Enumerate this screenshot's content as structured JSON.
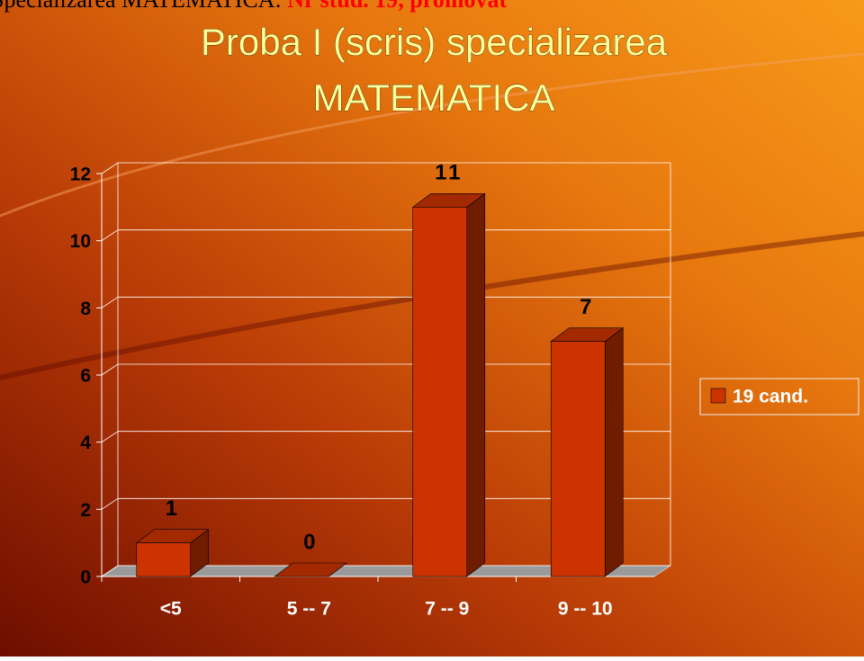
{
  "header": {
    "label": "Specializarea MATEMATICA: ",
    "highlight": "Nr stud. 19, promovat"
  },
  "chart_data": {
    "type": "bar3d",
    "title": [
      "Proba I (scris) specializarea",
      "MATEMATICA"
    ],
    "categories": [
      "<5",
      "5 -- 7",
      "7 -- 9",
      "9 -- 10"
    ],
    "series": [
      {
        "name": "19 cand.",
        "color": "#cc3300",
        "values": [
          1,
          0,
          11,
          7
        ]
      }
    ],
    "ylim": [
      0,
      12
    ],
    "yticks": [
      0,
      2,
      4,
      6,
      8,
      10,
      12
    ],
    "grid": true,
    "legend": "right"
  }
}
